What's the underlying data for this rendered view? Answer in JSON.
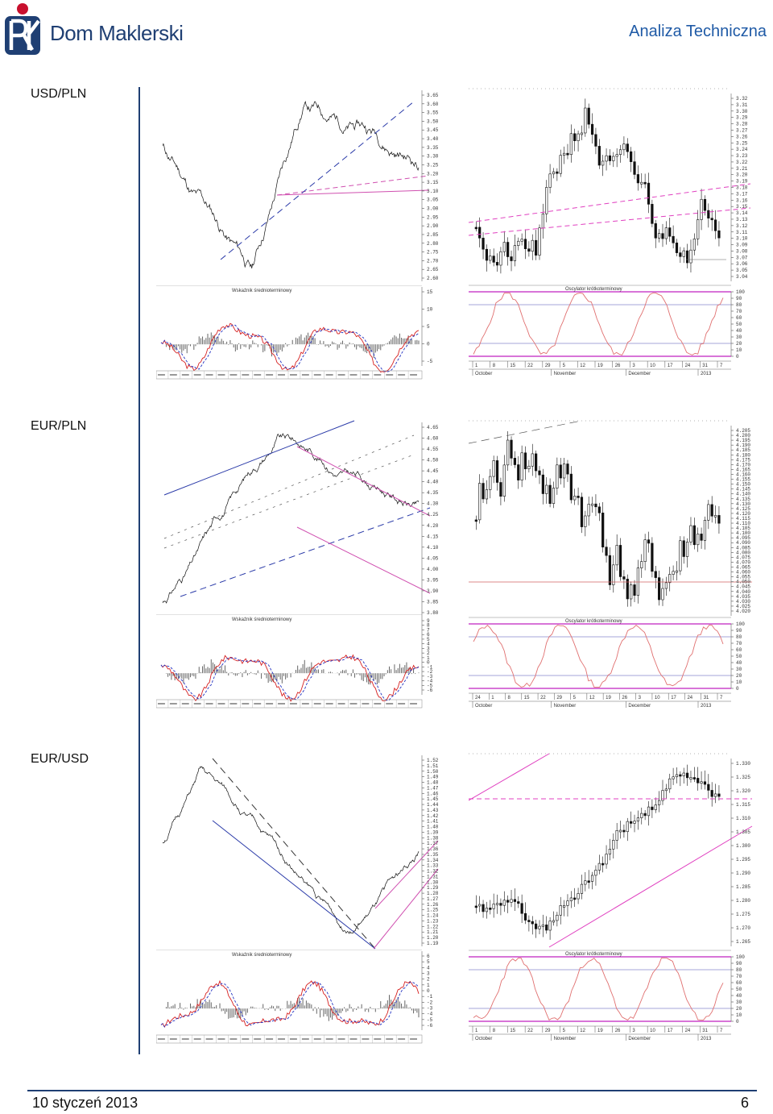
{
  "header": {
    "brand": "Dom Maklerski",
    "section_title": "Analiza Techniczna",
    "logo_color": "#1f3f73",
    "logo_accent": "#c8102e"
  },
  "footer": {
    "date": "10 styczeń 2013",
    "page_number": "6"
  },
  "colors": {
    "trend_pink": "#e040c0",
    "trend_blue": "#2a3aa8",
    "macd_red": "#d62020",
    "macd_blue": "#2030c0",
    "stoch_line": "#e07070",
    "stoch_band": "#c020c0"
  },
  "pairs": [
    {
      "id": "usdpln",
      "label": "USD/PLN",
      "long_axis": [
        "3.65",
        "3.60",
        "3.55",
        "3.50",
        "3.45",
        "3.40",
        "3.35",
        "3.30",
        "3.25",
        "3.20",
        "3.15",
        "3.10",
        "3.05",
        "3.00",
        "2.95",
        "2.90",
        "2.85",
        "2.80",
        "2.75",
        "2.70",
        "2.65",
        "2.60"
      ],
      "short_axis": [
        "3.32",
        "3.31",
        "3.30",
        "3.29",
        "3.28",
        "3.27",
        "3.26",
        "3.25",
        "3.24",
        "3.23",
        "3.22",
        "3.21",
        "3.20",
        "3.19",
        "3.18",
        "3.17",
        "3.16",
        "3.15",
        "3.14",
        "3.13",
        "3.12",
        "3.11",
        "3.10",
        "3.09",
        "3.08",
        "3.07",
        "3.06",
        "3.05",
        "3.04"
      ],
      "macd_title": "Wskaźnik średnioterminowy",
      "macd_axis": [
        "15",
        "10",
        "5",
        "0",
        "-5"
      ],
      "stoch_title": "Oscylator krótkoterminowy",
      "stoch_axis": [
        "100",
        "90",
        "80",
        "70",
        "60",
        "50",
        "40",
        "30",
        "20",
        "10",
        "0"
      ],
      "day_ticks": [
        "1",
        "8",
        "15",
        "22",
        "29",
        "5",
        "12",
        "19",
        "26",
        "3",
        "10",
        "17",
        "24",
        "31",
        "7"
      ],
      "month_ticks": [
        "October",
        "November",
        "December",
        "2013"
      ]
    },
    {
      "id": "eurpln",
      "label": "EUR/PLN",
      "long_axis": [
        "4.65",
        "4.60",
        "4.55",
        "4.50",
        "4.45",
        "4.40",
        "4.35",
        "4.30",
        "4.25",
        "4.20",
        "4.15",
        "4.10",
        "4.05",
        "4.00",
        "3.95",
        "3.90",
        "3.85",
        "3.80"
      ],
      "short_axis": [
        "4.205",
        "4.200",
        "4.195",
        "4.190",
        "4.185",
        "4.180",
        "4.175",
        "4.170",
        "4.165",
        "4.160",
        "4.155",
        "4.150",
        "4.145",
        "4.140",
        "4.135",
        "4.130",
        "4.125",
        "4.120",
        "4.115",
        "4.110",
        "4.105",
        "4.100",
        "4.095",
        "4.090",
        "4.085",
        "4.080",
        "4.075",
        "4.070",
        "4.065",
        "4.060",
        "4.055",
        "4.050",
        "4.045",
        "4.040",
        "4.035",
        "4.030",
        "4.025",
        "4.020"
      ],
      "macd_title": "Wskaźnik średnioterminowy",
      "macd_axis": [
        "9",
        "8",
        "7",
        "6",
        "5",
        "4",
        "3",
        "2",
        "1",
        "0",
        "-1",
        "-2",
        "-3",
        "-4",
        "-5",
        "-6"
      ],
      "stoch_title": "Oscylator krótkoterminowy",
      "stoch_axis": [
        "100",
        "90",
        "80",
        "70",
        "60",
        "50",
        "40",
        "30",
        "20",
        "10",
        "0"
      ],
      "day_ticks": [
        "24",
        "1",
        "8",
        "15",
        "22",
        "29",
        "5",
        "12",
        "19",
        "26",
        "3",
        "10",
        "17",
        "24",
        "31",
        "7"
      ],
      "month_ticks": [
        "October",
        "November",
        "December",
        "2013"
      ]
    },
    {
      "id": "eurusd",
      "label": "EUR/USD",
      "long_axis": [
        "1.52",
        "1.51",
        "1.50",
        "1.49",
        "1.48",
        "1.47",
        "1.46",
        "1.45",
        "1.44",
        "1.43",
        "1.42",
        "1.41",
        "1.40",
        "1.39",
        "1.38",
        "1.37",
        "1.36",
        "1.35",
        "1.34",
        "1.33",
        "1.32",
        "1.31",
        "1.30",
        "1.29",
        "1.28",
        "1.27",
        "1.26",
        "1.25",
        "1.24",
        "1.23",
        "1.22",
        "1.21",
        "1.20",
        "1.19"
      ],
      "short_axis": [
        "1.330",
        "1.325",
        "1.320",
        "1.315",
        "1.310",
        "1.305",
        "1.300",
        "1.295",
        "1.290",
        "1.285",
        "1.280",
        "1.275",
        "1.270",
        "1.265"
      ],
      "macd_title": "Wskaźnik średnioterminowy",
      "macd_axis": [
        "6",
        "5",
        "4",
        "3",
        "2",
        "1",
        "0",
        "-1",
        "-2",
        "-3",
        "-4",
        "-5",
        "-6"
      ],
      "stoch_title": "Oscylator krótkoterminowy",
      "stoch_axis": [
        "100",
        "90",
        "80",
        "70",
        "60",
        "50",
        "40",
        "30",
        "20",
        "10",
        "0"
      ],
      "day_ticks": [
        "1",
        "8",
        "15",
        "22",
        "29",
        "5",
        "12",
        "19",
        "26",
        "3",
        "10",
        "17",
        "24",
        "31",
        "7"
      ],
      "month_ticks": [
        "October",
        "November",
        "December",
        "2013"
      ]
    }
  ]
}
